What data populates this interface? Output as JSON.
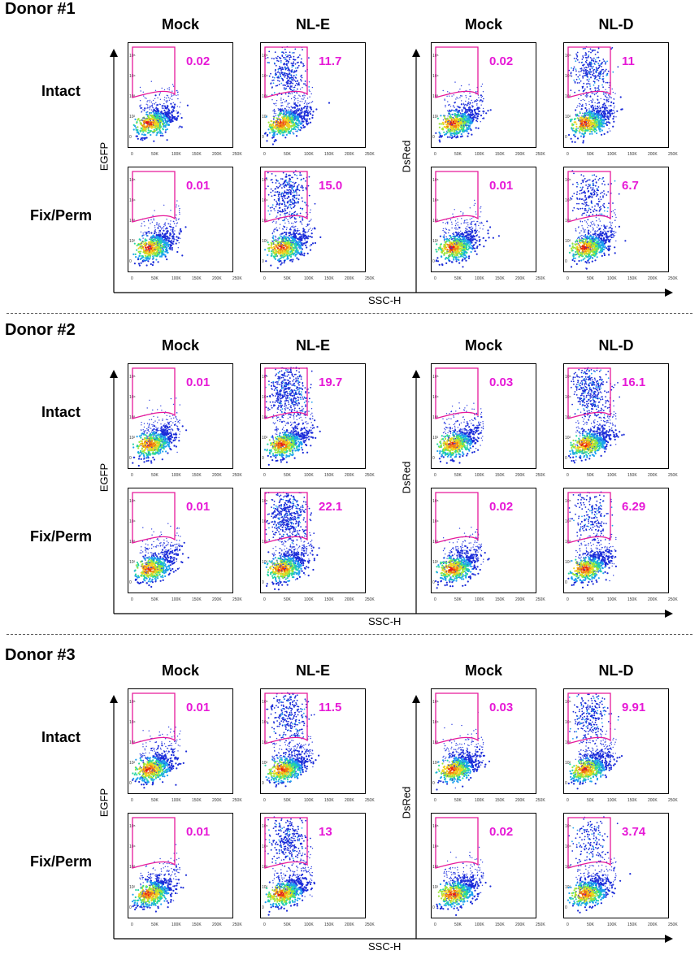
{
  "xaxis_label": "SSC-H",
  "x_ticks": [
    "0",
    "50K",
    "100K",
    "150K",
    "200K",
    "250K"
  ],
  "y_ticks": [
    "0",
    "10²",
    "10³",
    "10⁴",
    "10⁵"
  ],
  "colors": {
    "gate": "#e6199b",
    "value": "#e619d6"
  },
  "chart_data": [
    {
      "title": "Donor #1",
      "type": "scatter",
      "panels_left": {
        "ylabel": "EGFP",
        "columns": [
          "Mock",
          "NL-E"
        ]
      },
      "panels_right": {
        "ylabel": "DsRed",
        "columns": [
          "Mock",
          "NL-D"
        ]
      },
      "rows": [
        "Intact",
        "Fix/Perm"
      ],
      "values": {
        "intact": {
          "mock_egfp": "0.02",
          "nl_e": "11.7",
          "mock_dsred": "0.02",
          "nl_d": "11"
        },
        "fixperm": {
          "mock_egfp": "0.01",
          "nl_e": "15.0",
          "mock_dsred": "0.01",
          "nl_d": "6.7"
        }
      }
    },
    {
      "title": "Donor #2",
      "type": "scatter",
      "panels_left": {
        "ylabel": "EGFP",
        "columns": [
          "Mock",
          "NL-E"
        ]
      },
      "panels_right": {
        "ylabel": "DsRed",
        "columns": [
          "Mock",
          "NL-D"
        ]
      },
      "rows": [
        "Intact",
        "Fix/Perm"
      ],
      "values": {
        "intact": {
          "mock_egfp": "0.01",
          "nl_e": "19.7",
          "mock_dsred": "0.03",
          "nl_d": "16.1"
        },
        "fixperm": {
          "mock_egfp": "0.01",
          "nl_e": "22.1",
          "mock_dsred": "0.02",
          "nl_d": "6.29"
        }
      }
    },
    {
      "title": "Donor #3",
      "type": "scatter",
      "panels_left": {
        "ylabel": "EGFP",
        "columns": [
          "Mock",
          "NL-E"
        ]
      },
      "panels_right": {
        "ylabel": "DsRed",
        "columns": [
          "Mock",
          "NL-D"
        ]
      },
      "rows": [
        "Intact",
        "Fix/Perm"
      ],
      "values": {
        "intact": {
          "mock_egfp": "0.01",
          "nl_e": "11.5",
          "mock_dsred": "0.03",
          "nl_d": "9.91"
        },
        "fixperm": {
          "mock_egfp": "0.01",
          "nl_e": "13",
          "mock_dsred": "0.02",
          "nl_d": "3.74"
        }
      }
    }
  ]
}
